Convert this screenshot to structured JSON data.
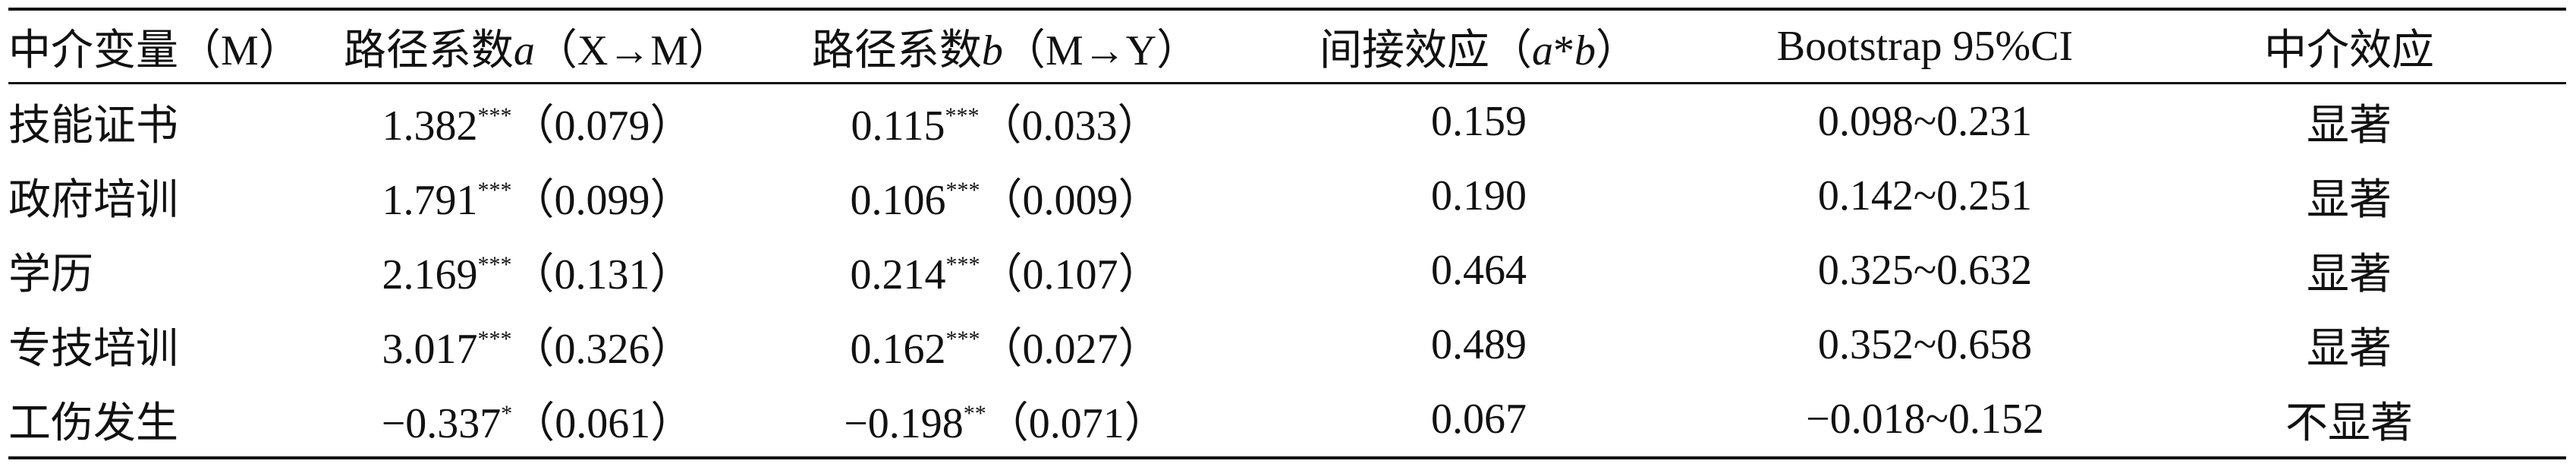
{
  "table": {
    "headers": [
      [
        "中介变量（M）"
      ],
      [
        "路径系数",
        "a",
        "（X→M）"
      ],
      [
        "路径系数",
        "b",
        "（M→Y）"
      ],
      [
        "间接效应（",
        "a",
        "*",
        "b",
        "）"
      ],
      [
        "Bootstrap 95%CI"
      ],
      [
        "中介效应"
      ]
    ],
    "rows": [
      [
        "技能证书",
        [
          "1.382",
          "***",
          "（0.079）"
        ],
        [
          "0.115",
          "***",
          "（0.033）"
        ],
        "0.159",
        "0.098~0.231",
        "显著"
      ],
      [
        "政府培训",
        [
          "1.791",
          "***",
          "（0.099）"
        ],
        [
          "0.106",
          "***",
          "（0.009）"
        ],
        "0.190",
        "0.142~0.251",
        "显著"
      ],
      [
        "学历",
        [
          "2.169",
          "***",
          "（0.131）"
        ],
        [
          "0.214",
          "***",
          "（0.107）"
        ],
        "0.464",
        "0.325~0.632",
        "显著"
      ],
      [
        "专技培训",
        [
          "3.017",
          "***",
          "（0.326）"
        ],
        [
          "0.162",
          "***",
          "（0.027）"
        ],
        "0.489",
        "0.352~0.658",
        "显著"
      ],
      [
        "工伤发生",
        [
          "−0.337",
          "*",
          "（0.061）"
        ],
        [
          "−0.198",
          "**",
          "（0.071）"
        ],
        "0.067",
        "−0.018~0.152",
        "不显著"
      ]
    ]
  }
}
